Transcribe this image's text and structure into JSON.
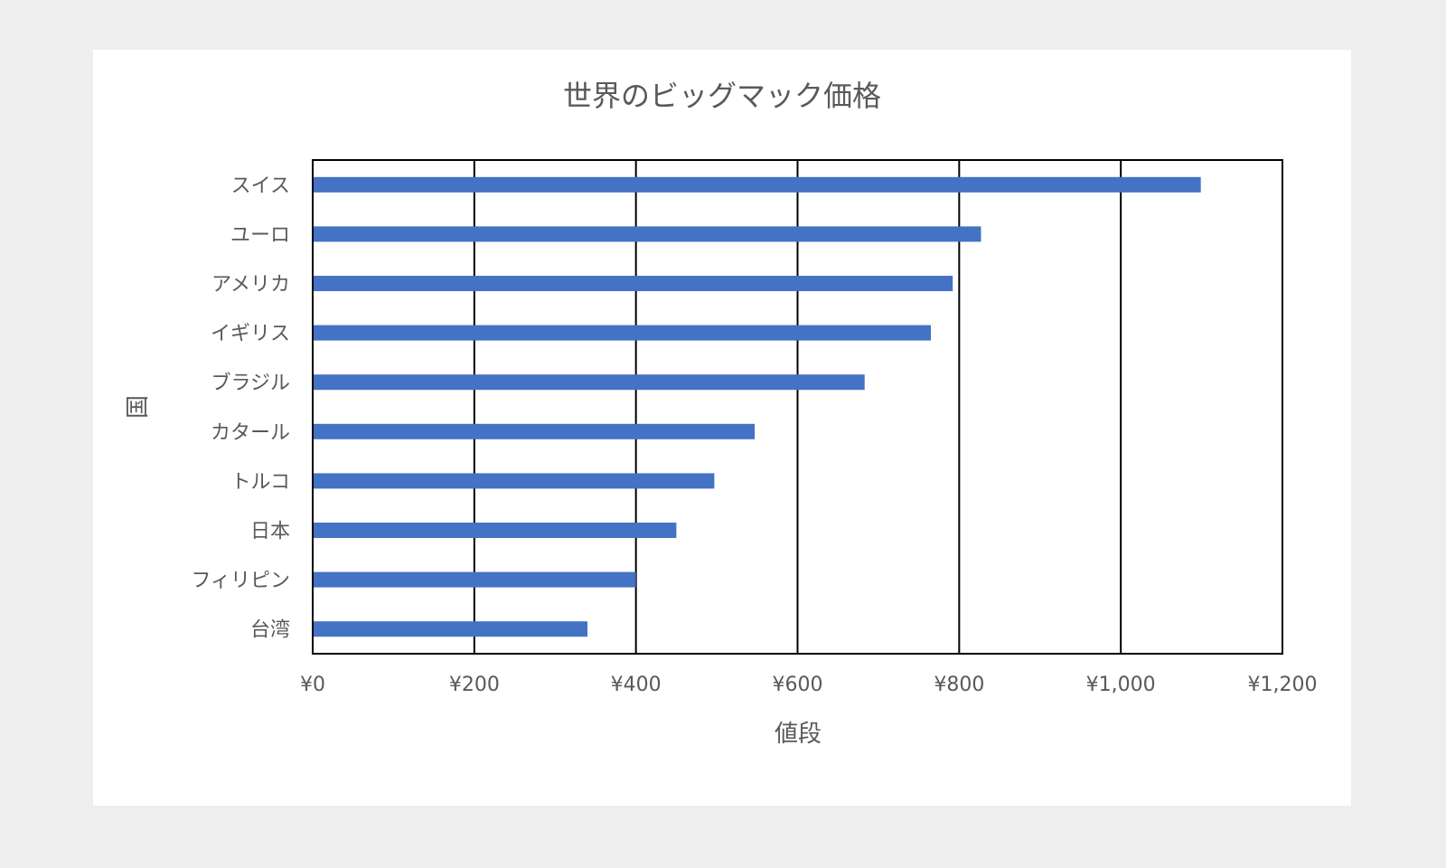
{
  "chart_data": {
    "type": "bar",
    "orientation": "horizontal",
    "title": "世界のビッグマック価格",
    "xlabel": "値段",
    "ylabel": "国",
    "categories": [
      "スイス",
      "ユーロ",
      "アメリカ",
      "イギリス",
      "ブラジル",
      "カタール",
      "トルコ",
      "日本",
      "フィリピン",
      "台湾"
    ],
    "values": [
      1099,
      827,
      792,
      765,
      683,
      547,
      497,
      450,
      400,
      340
    ],
    "xlim": [
      0,
      1200
    ],
    "xticks": [
      0,
      200,
      400,
      600,
      800,
      1000,
      1200
    ],
    "xtick_labels": [
      "¥0",
      "¥200",
      "¥400",
      "¥600",
      "¥800",
      "¥1,000",
      "¥1,200"
    ],
    "grid": "vertical",
    "legend": "none",
    "bar_color": "#4472c4"
  }
}
